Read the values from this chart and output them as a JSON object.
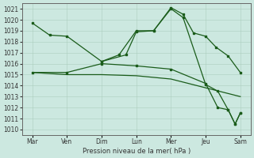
{
  "background_color": "#cce8e0",
  "grid_color": "#aaccbb",
  "line_color": "#1a5c1a",
  "title": "Pression niveau de la mer( hPa )",
  "x_labels": [
    "Mar",
    "Ven",
    "Dim",
    "Lun",
    "Mer",
    "Jeu",
    "Sam"
  ],
  "ylim": [
    1009.5,
    1021.5
  ],
  "yticks": [
    1010,
    1011,
    1012,
    1013,
    1014,
    1015,
    1016,
    1017,
    1018,
    1019,
    1020,
    1021
  ],
  "line1_x": [
    0,
    0.5,
    1.0,
    2.0,
    2.7,
    3.0,
    3.5,
    4.0,
    4.35,
    4.65,
    5.0,
    5.3,
    5.65,
    6.0
  ],
  "line1_y": [
    1019.7,
    1018.6,
    1018.5,
    1016.2,
    1016.8,
    1018.9,
    1019.0,
    1021.1,
    1020.5,
    1018.8,
    1018.5,
    1017.5,
    1016.7,
    1015.2
  ],
  "line2_x": [
    2.0,
    2.5,
    3.0,
    3.5,
    4.0,
    4.35,
    5.0,
    5.35,
    5.65,
    5.85,
    6.0
  ],
  "line2_y": [
    1016.2,
    1016.8,
    1019.0,
    1019.0,
    1021.0,
    1020.2,
    1014.1,
    1013.5,
    1011.8,
    1010.5,
    1011.5
  ],
  "line3_x": [
    0,
    1.0,
    2.0,
    3.0,
    4.0,
    5.0,
    5.35,
    5.65,
    5.85,
    6.0
  ],
  "line3_y": [
    1015.2,
    1015.2,
    1016.0,
    1015.8,
    1015.5,
    1014.2,
    1012.0,
    1011.8,
    1010.5,
    1011.5
  ],
  "line4_x": [
    0,
    1.0,
    2.0,
    3.0,
    4.0,
    5.0,
    6.0
  ],
  "line4_y": [
    1015.2,
    1015.0,
    1015.0,
    1014.9,
    1014.6,
    1013.8,
    1013.0
  ]
}
